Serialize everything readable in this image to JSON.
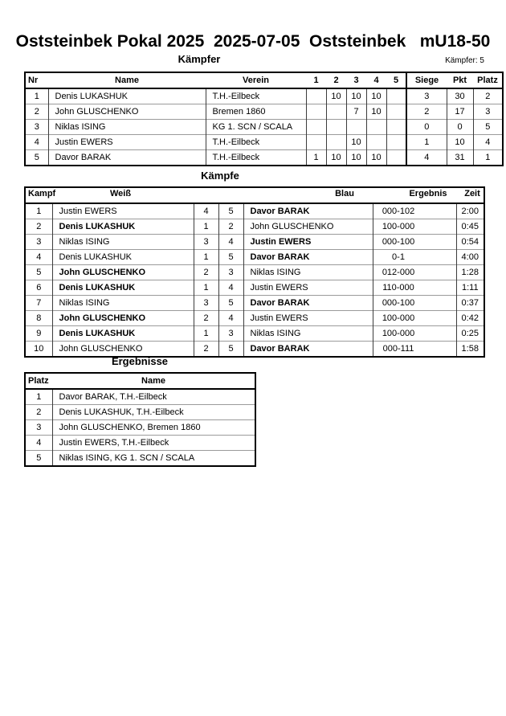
{
  "page": {
    "title": "Oststeinbek Pokal 2025  2025-07-05  Oststeinbek   mU18-50"
  },
  "fighters_section": {
    "label": "Kämpfer",
    "count_label": "Kämpfer: 5",
    "table": {
      "headers": [
        "Nr",
        "Name",
        "Verein",
        "1",
        "2",
        "3",
        "4",
        "5",
        "Siege",
        "Pkt",
        "Platz"
      ],
      "rows": [
        {
          "nr": "1",
          "name": "Denis LUKASHUK",
          "verein": "T.H.-Eilbeck",
          "scores": [
            "",
            "10",
            "10",
            "10",
            ""
          ],
          "siege": "3",
          "pkt": "30",
          "platz": "2"
        },
        {
          "nr": "2",
          "name": "John GLUSCHENKO",
          "verein": "Bremen 1860",
          "scores": [
            "",
            "",
            "7",
            "10",
            ""
          ],
          "siege": "2",
          "pkt": "17",
          "platz": "3"
        },
        {
          "nr": "3",
          "name": "Niklas ISING",
          "verein": "KG 1. SCN / SCALA",
          "scores": [
            "",
            "",
            "",
            "",
            ""
          ],
          "siege": "0",
          "pkt": "0",
          "platz": "5"
        },
        {
          "nr": "4",
          "name": "Justin EWERS",
          "verein": "T.H.-Eilbeck",
          "scores": [
            "",
            "",
            "10",
            "",
            ""
          ],
          "siege": "1",
          "pkt": "10",
          "platz": "4"
        },
        {
          "nr": "5",
          "name": "Davor BARAK",
          "verein": "T.H.-Eilbeck",
          "scores": [
            "1",
            "10",
            "10",
            "10",
            ""
          ],
          "siege": "4",
          "pkt": "31",
          "platz": "1"
        }
      ]
    }
  },
  "fights_section": {
    "label": "Kämpfe",
    "table": {
      "headers": [
        "Kampf",
        "Weiß",
        "Blau",
        "Ergebnis",
        "Zeit"
      ],
      "rows": [
        {
          "kampf": "1",
          "weiss": "Justin EWERS",
          "weiss_bold": false,
          "weiss_nr": "4",
          "blau_nr": "5",
          "blau": "Davor BARAK",
          "blau_bold": true,
          "ergebnis": "000-102",
          "zeit": "2:00"
        },
        {
          "kampf": "2",
          "weiss": "Denis LUKASHUK",
          "weiss_bold": true,
          "weiss_nr": "1",
          "blau_nr": "2",
          "blau": "John GLUSCHENKO",
          "blau_bold": false,
          "ergebnis": "100-000",
          "zeit": "0:45"
        },
        {
          "kampf": "3",
          "weiss": "Niklas ISING",
          "weiss_bold": false,
          "weiss_nr": "3",
          "blau_nr": "4",
          "blau": "Justin EWERS",
          "blau_bold": true,
          "ergebnis": "000-100",
          "zeit": "0:54"
        },
        {
          "kampf": "4",
          "weiss": "Denis LUKASHUK",
          "weiss_bold": false,
          "weiss_nr": "1",
          "blau_nr": "5",
          "blau": "Davor BARAK",
          "blau_bold": true,
          "ergebnis": "0-1",
          "zeit": "4:00"
        },
        {
          "kampf": "5",
          "weiss": "John GLUSCHENKO",
          "weiss_bold": true,
          "weiss_nr": "2",
          "blau_nr": "3",
          "blau": "Niklas ISING",
          "blau_bold": false,
          "ergebnis": "012-000",
          "zeit": "1:28"
        },
        {
          "kampf": "6",
          "weiss": "Denis LUKASHUK",
          "weiss_bold": true,
          "weiss_nr": "1",
          "blau_nr": "4",
          "blau": "Justin EWERS",
          "blau_bold": false,
          "ergebnis": "110-000",
          "zeit": "1:11"
        },
        {
          "kampf": "7",
          "weiss": "Niklas ISING",
          "weiss_bold": false,
          "weiss_nr": "3",
          "blau_nr": "5",
          "blau": "Davor BARAK",
          "blau_bold": true,
          "ergebnis": "000-100",
          "zeit": "0:37"
        },
        {
          "kampf": "8",
          "weiss": "John GLUSCHENKO",
          "weiss_bold": true,
          "weiss_nr": "2",
          "blau_nr": "4",
          "blau": "Justin EWERS",
          "blau_bold": false,
          "ergebnis": "100-000",
          "zeit": "0:42"
        },
        {
          "kampf": "9",
          "weiss": "Denis LUKASHUK",
          "weiss_bold": true,
          "weiss_nr": "1",
          "blau_nr": "3",
          "blau": "Niklas ISING",
          "blau_bold": false,
          "ergebnis": "100-000",
          "zeit": "0:25"
        },
        {
          "kampf": "10",
          "weiss": "John GLUSCHENKO",
          "weiss_bold": false,
          "weiss_nr": "2",
          "blau_nr": "5",
          "blau": "Davor BARAK",
          "blau_bold": true,
          "ergebnis": "000-111",
          "zeit": "1:58"
        }
      ]
    }
  },
  "results_section": {
    "label": "Ergebnisse",
    "table": {
      "headers": [
        "Platz",
        "Name"
      ],
      "rows": [
        {
          "platz": "1",
          "name": "Davor BARAK, T.H.-Eilbeck"
        },
        {
          "platz": "2",
          "name": "Denis LUKASHUK, T.H.-Eilbeck"
        },
        {
          "platz": "3",
          "name": "John GLUSCHENKO, Bremen 1860"
        },
        {
          "platz": "4",
          "name": "Justin EWERS, T.H.-Eilbeck"
        },
        {
          "platz": "5",
          "name": "Niklas ISING, KG 1. SCN / SCALA"
        }
      ]
    }
  }
}
